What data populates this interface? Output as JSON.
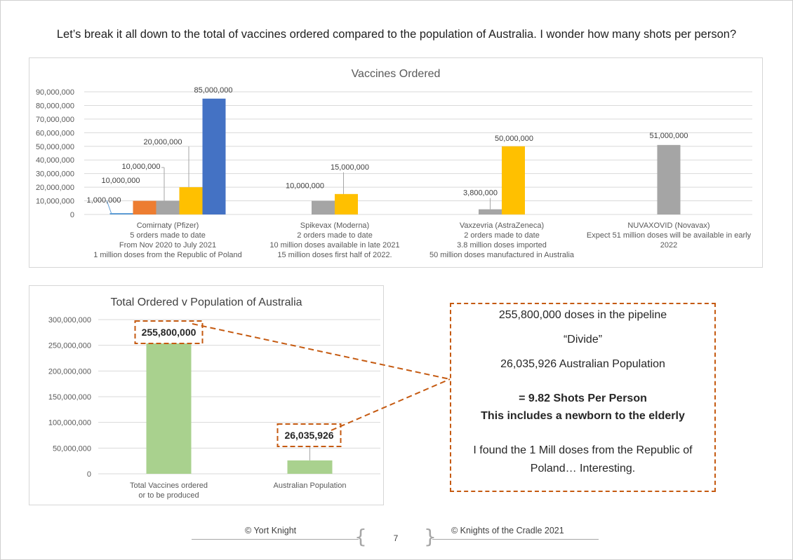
{
  "heading": "Let’s break it all down to the total of vaccines ordered compared to the population of Australia. I wonder how many shots per person?",
  "chart_data": [
    {
      "type": "bar",
      "title": "Vaccines Ordered",
      "ylim": [
        0,
        90000000
      ],
      "yticks": [
        "0",
        "10,000,000",
        "20,000,000",
        "30,000,000",
        "40,000,000",
        "50,000,000",
        "60,000,000",
        "70,000,000",
        "80,000,000",
        "90,000,000"
      ],
      "grid": true,
      "groups": [
        {
          "label_lines": [
            "Comirnaty (Pfizer)",
            "5 orders made to date",
            "From Nov 2020 to July 2021",
            "1 million doses from the Republic of Poland"
          ],
          "bars": [
            {
              "value": 1000000,
              "label": "1,000,000",
              "color": "#5b9bd5"
            },
            {
              "value": 10000000,
              "label": "10,000,000",
              "color": "#ed7d31"
            },
            {
              "value": 10000000,
              "label": "10,000,000",
              "color": "#a5a5a5"
            },
            {
              "value": 20000000,
              "label": "20,000,000",
              "color": "#ffc000"
            },
            {
              "value": 85000000,
              "label": "85,000,000",
              "color": "#4472c4"
            }
          ]
        },
        {
          "label_lines": [
            "Spikevax (Moderna)",
            "2 orders made to date",
            "10 million doses available in late 2021",
            "15 million doses first half of 2022."
          ],
          "bars": [
            {
              "value": 10000000,
              "label": "10,000,000",
              "color": "#a5a5a5"
            },
            {
              "value": 15000000,
              "label": "15,000,000",
              "color": "#ffc000"
            }
          ]
        },
        {
          "label_lines": [
            "Vaxzevria (AstraZeneca)",
            "2 orders made to date",
            "3.8 million doses imported",
            "50 million doses manufactured in Australia"
          ],
          "bars": [
            {
              "value": 3800000,
              "label": "3,800,000",
              "color": "#a5a5a5"
            },
            {
              "value": 50000000,
              "label": "50,000,000",
              "color": "#ffc000"
            }
          ]
        },
        {
          "label_lines": [
            "NUVAXOVID (Novavax)",
            "Expect 51 million doses will be available in early",
            "2022"
          ],
          "bars": [
            {
              "value": 51000000,
              "label": "51,000,000",
              "color": "#a5a5a5"
            }
          ]
        }
      ]
    },
    {
      "type": "bar",
      "title": "Total Ordered v Population of Australia",
      "ylim": [
        0,
        300000000
      ],
      "yticks": [
        "0",
        "50,000,000",
        "100,000,000",
        "150,000,000",
        "200,000,000",
        "250,000,000",
        "300,000,000"
      ],
      "grid": true,
      "categories": [
        {
          "label_lines": [
            "Total Vaccines ordered",
            "or to be produced"
          ],
          "value": 255800000,
          "label": "255,800,000",
          "color": "#a9d18e"
        },
        {
          "label_lines": [
            "Australian Population"
          ],
          "value": 26035926,
          "label": "26,035,926",
          "color": "#a9d18e"
        }
      ]
    }
  ],
  "callout": {
    "line1": "255,800,000 doses in the pipeline",
    "line2": "“Divide”",
    "line3": "26,035,926 Australian Population",
    "line4": "= 9.82 Shots Per Person",
    "line5": "This includes a newborn to the elderly",
    "line6": "I found the 1 Mill doses from the Republic of",
    "line7": "Poland… Interesting.",
    "border_color": "#c55a11"
  },
  "footer": {
    "left": "© Yort Knight",
    "page": "7",
    "right": "© Knights of the Cradle 2021"
  }
}
